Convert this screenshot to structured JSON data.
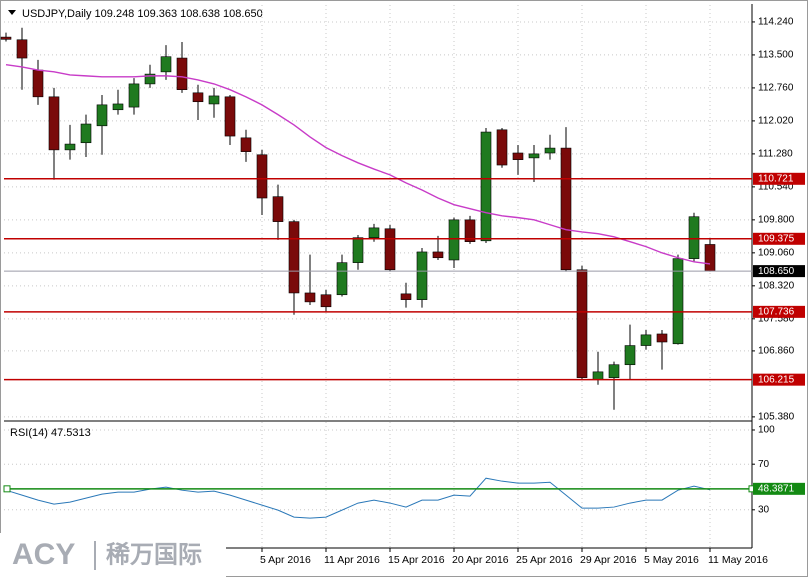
{
  "chart_data": [
    {
      "type": "candlestick",
      "title": "USDJPY,Daily  109.248 109.363 108.638 108.650",
      "categories": [
        null,
        null,
        null,
        null,
        null,
        null,
        null,
        null,
        null,
        null,
        null,
        null,
        null,
        null,
        null,
        null,
        "5 Apr 2016",
        null,
        null,
        null,
        "11 Apr 2016",
        null,
        null,
        null,
        "15 Apr 2016",
        null,
        null,
        null,
        "20 Apr 2016",
        null,
        null,
        null,
        "25 Apr 2016",
        null,
        null,
        null,
        "29 Apr 2016",
        null,
        null,
        null,
        "5 May 2016",
        null,
        null,
        null,
        "11 May 2016"
      ],
      "open": [
        113.9,
        113.84,
        113.16,
        112.56,
        111.37,
        111.53,
        111.91,
        112.27,
        112.33,
        112.85,
        113.12,
        113.43,
        112.65,
        112.4,
        112.56,
        111.64,
        111.26,
        110.32,
        109.76,
        108.16,
        108.12,
        108.12,
        108.84,
        109.4,
        109.6,
        108.14,
        108.01,
        109.08,
        108.9,
        109.8,
        109.33,
        111.82,
        111.3,
        111.19,
        111.3,
        111.41,
        108.68,
        106.22,
        106.26,
        106.55,
        106.98,
        107.24,
        107.02,
        108.93,
        109.248
      ],
      "high": [
        114.0,
        114.11,
        113.39,
        112.76,
        111.93,
        112.16,
        112.6,
        112.72,
        112.98,
        113.28,
        113.72,
        113.79,
        112.83,
        112.76,
        112.6,
        111.82,
        111.37,
        110.59,
        109.8,
        109.02,
        108.23,
        109.02,
        109.46,
        109.71,
        109.69,
        108.39,
        109.17,
        109.44,
        109.85,
        109.89,
        111.86,
        111.86,
        111.48,
        111.48,
        111.71,
        111.88,
        108.77,
        106.84,
        106.62,
        107.45,
        107.33,
        107.33,
        109.02,
        109.96,
        109.363
      ],
      "low": [
        113.8,
        112.72,
        112.38,
        110.7,
        111.15,
        111.21,
        111.26,
        112.16,
        112.16,
        112.76,
        112.94,
        112.65,
        112.04,
        112.09,
        111.48,
        111.1,
        109.91,
        109.35,
        107.67,
        107.89,
        107.74,
        108.08,
        108.68,
        109.31,
        108.64,
        107.83,
        107.83,
        108.9,
        108.72,
        109.26,
        109.28,
        110.97,
        110.81,
        110.65,
        111.15,
        108.64,
        106.22,
        106.1,
        105.54,
        106.22,
        106.89,
        106.44,
        107.0,
        108.86,
        108.638
      ],
      "close": [
        113.85,
        113.43,
        112.56,
        111.37,
        111.5,
        111.95,
        112.38,
        112.4,
        112.85,
        113.07,
        113.46,
        112.72,
        112.45,
        112.58,
        111.68,
        111.33,
        110.29,
        109.76,
        108.16,
        107.96,
        107.85,
        108.84,
        109.4,
        109.62,
        108.68,
        108.01,
        109.08,
        108.95,
        109.8,
        109.31,
        111.77,
        111.03,
        111.15,
        111.28,
        111.41,
        108.68,
        106.26,
        106.39,
        106.55,
        106.98,
        107.22,
        107.06,
        108.93,
        109.87,
        108.65
      ],
      "up_color": "#1f7a1f",
      "down_color": "#7a0a0a",
      "ma": {
        "color": "#c83cc8",
        "values": [
          113.28,
          113.23,
          113.16,
          113.12,
          113.05,
          113.03,
          113.01,
          113.01,
          113.01,
          113.03,
          113.03,
          113.01,
          112.94,
          112.85,
          112.72,
          112.56,
          112.38,
          112.16,
          111.93,
          111.66,
          111.42,
          111.24,
          111.08,
          110.94,
          110.81,
          110.63,
          110.47,
          110.29,
          110.14,
          110.05,
          109.96,
          109.89,
          109.85,
          109.8,
          109.69,
          109.58,
          109.53,
          109.49,
          109.42,
          109.31,
          109.2,
          109.06,
          108.95,
          108.86,
          108.81
        ]
      },
      "levels": [
        {
          "value": 110.721,
          "color": "#c00000",
          "label_color": "#c00000"
        },
        {
          "value": 109.375,
          "color": "#c00000",
          "label_color": "#c00000"
        },
        {
          "value": 108.65,
          "label": "108.650",
          "color": "#9a9aa6",
          "label_color": "#000000"
        },
        {
          "value": 107.736,
          "color": "#c00000",
          "label_color": "#c00000"
        },
        {
          "value": 106.215,
          "color": "#c00000",
          "label_color": "#c00000"
        }
      ],
      "ylim": [
        105.31,
        114.62
      ],
      "yticks": [
        {
          "value": 114.24,
          "label": "114.240"
        },
        {
          "value": 113.5,
          "label": "113.500"
        },
        {
          "value": 112.76,
          "label": "112.760"
        },
        {
          "value": 112.02,
          "label": "112.020"
        },
        {
          "value": 111.28,
          "label": "111.280"
        },
        {
          "value": 110.54,
          "label": "110.540"
        },
        {
          "value": 109.8,
          "label": "109.800"
        },
        {
          "value": 109.06,
          "label": "109.060"
        },
        {
          "value": 108.32,
          "label": "108.320"
        },
        {
          "value": 107.58,
          "label": "107.580"
        },
        {
          "value": 106.86,
          "label": "106.860"
        },
        {
          "value": 105.38,
          "label": "105.380"
        }
      ],
      "grid": true
    },
    {
      "type": "line",
      "title": "RSI(14) 47.5313",
      "series": [
        {
          "color": "#2a78b8",
          "values": [
            47.2,
            42.9,
            38.5,
            35.0,
            36.7,
            40.2,
            43.7,
            45.5,
            45.5,
            48.1,
            49.9,
            47.2,
            45.5,
            46.4,
            42.9,
            38.5,
            34.1,
            29.7,
            23.6,
            22.7,
            23.6,
            29.7,
            35.9,
            38.5,
            35.9,
            32.4,
            38.5,
            38.5,
            42.9,
            42.0,
            57.7,
            55.1,
            53.4,
            53.4,
            54.2,
            42.9,
            31.5,
            31.5,
            32.4,
            35.9,
            38.5,
            38.5,
            47.2,
            50.7,
            47.5313
          ]
        }
      ],
      "levels": [
        {
          "value": 48.3871,
          "color": "#138a13",
          "label_color": "#138a13"
        }
      ],
      "ylim": [
        -3.5,
        107
      ],
      "yticks": [
        100,
        70,
        30
      ],
      "grid": true
    }
  ],
  "logo": {
    "brand": "ACY",
    "cn": "稀万国际"
  }
}
